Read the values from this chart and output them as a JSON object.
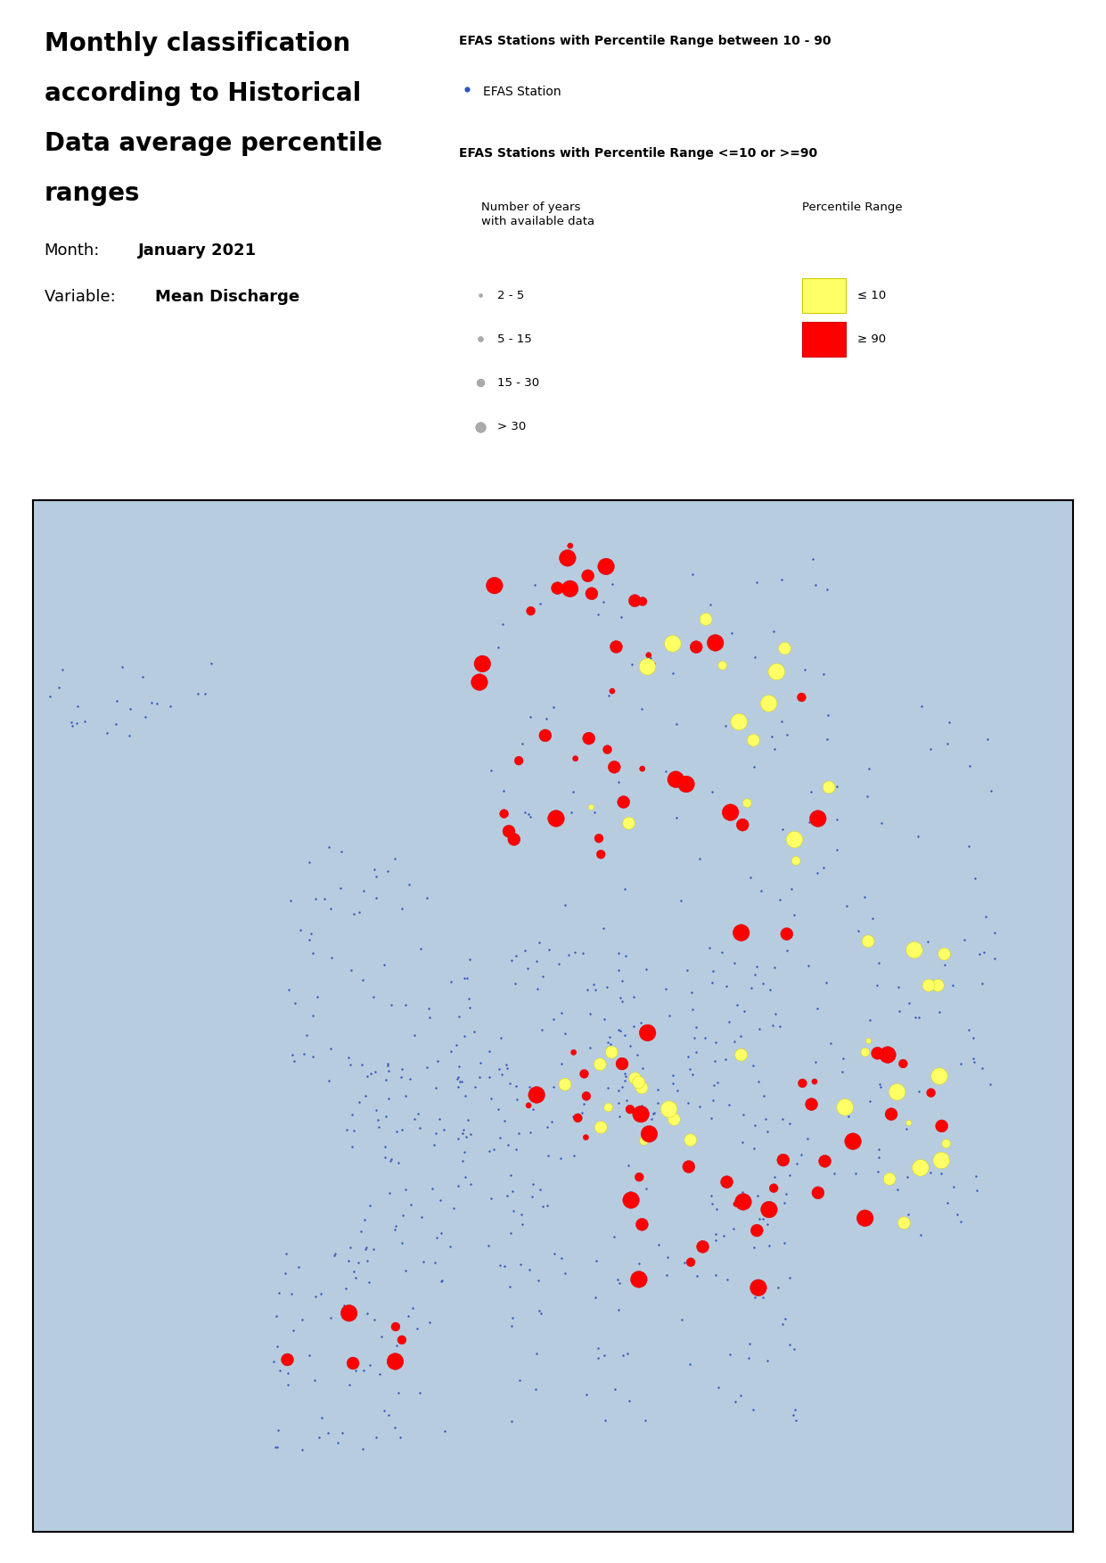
{
  "title_line1": "Monthly classification",
  "title_line2": "according to Historical",
  "title_line3": "Data average percentile",
  "title_line4": "ranges",
  "month_label": "Month:",
  "month_value": "January 2021",
  "variable_label": "Variable:  ",
  "variable_value": "Mean Discharge",
  "legend_title1": "EFAS Stations with Percentile Range between 10 - 90",
  "legend_item1": "EFAS Station",
  "legend_title2": "EFAS Stations with Percentile Range <=10 or >=90",
  "legend_size_title1": "Number of years",
  "legend_size_title2": "with available data",
  "legend_percentile_title": "Percentile Range",
  "size_labels": [
    "2 - 5",
    "5 - 15",
    "15 - 30",
    "> 30"
  ],
  "size_marker_pts": [
    3,
    5,
    8,
    11
  ],
  "percentile_labels": [
    "≤ 10",
    "≥ 90"
  ],
  "percentile_colors": [
    "#FFFF66",
    "#FF0000"
  ],
  "percentile_edge_colors": [
    "#CCCC00",
    "#CC0000"
  ],
  "blue_station_color": "#3355BB",
  "blue_station_size": 3,
  "map_extent": [
    -25,
    45,
    33,
    72
  ],
  "background_color": "#ffffff",
  "map_border_color": "#000000",
  "gray_dot_color": "#AAAAAA"
}
